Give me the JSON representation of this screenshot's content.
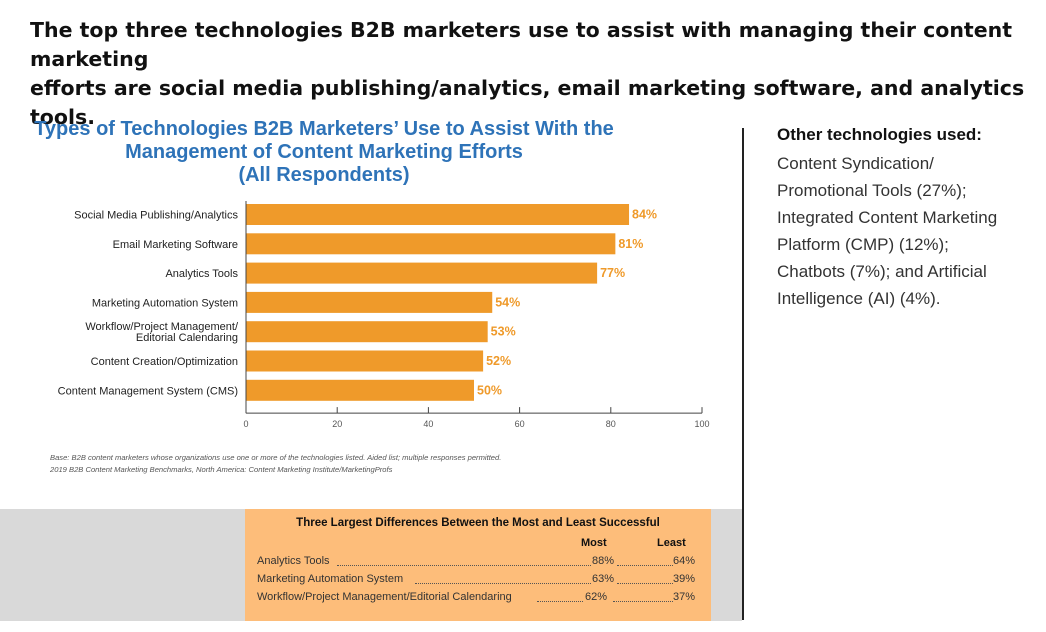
{
  "headline": {
    "line1": "The top three technologies B2B marketers use to assist with managing their content marketing",
    "line2": "efforts are social media publishing/analytics, email marketing software, and analytics tools."
  },
  "chart_data": {
    "type": "bar",
    "orientation": "horizontal",
    "title_lines": [
      "Types of Technologies B2B Marketers’ Use to Assist With the",
      "Management of Content Marketing Efforts",
      "(All Respondents)"
    ],
    "categories": [
      [
        "Social Media Publishing/Analytics"
      ],
      [
        "Email Marketing Software"
      ],
      [
        "Analytics Tools"
      ],
      [
        "Marketing Automation System"
      ],
      [
        "Workflow/Project Management/",
        "Editorial Calendaring"
      ],
      [
        "Content Creation/Optimization"
      ],
      [
        "Content Management System (CMS)"
      ]
    ],
    "values": [
      84,
      81,
      77,
      54,
      53,
      52,
      50
    ],
    "value_labels": [
      "84%",
      "81%",
      "77%",
      "54%",
      "53%",
      "52%",
      "50%"
    ],
    "xlim": [
      0,
      100
    ],
    "xticks": [
      0,
      20,
      40,
      60,
      80,
      100
    ],
    "bar_color": "#ef9a2a",
    "grid": false
  },
  "base_note": {
    "line1": "Base: B2B content marketers whose organizations use one or more of the technologies listed. Aided list; multiple responses permitted.",
    "line2": "2019 B2B Content Marketing Benchmarks, North America: Content Marketing Institute/MarketingProfs"
  },
  "sidebar": {
    "heading": "Other technologies used:",
    "lines": [
      "Content Syndication/",
      "Promotional Tools (27%);",
      "Integrated Content Marketing",
      "Platform (CMP) (12%);",
      "Chatbots (7%); and Artificial",
      "Intelligence (AI) (4%)."
    ]
  },
  "differences": {
    "title": "Three Largest Differences Between the Most and Least Successful",
    "col_most": "Most",
    "col_least": "Least",
    "rows": [
      {
        "label": "Analytics Tools",
        "most": "88%",
        "least": "64%"
      },
      {
        "label": "Marketing Automation System",
        "most": "63%",
        "least": "39%"
      },
      {
        "label": "Workflow/Project Management/Editorial Calendaring",
        "most": "62%",
        "least": "37%"
      }
    ],
    "box_color": "#fdbd7a",
    "band_color": "#d9d9d9"
  },
  "colors": {
    "title_blue": "#2e73b8",
    "bar_orange": "#ef9a2a"
  }
}
